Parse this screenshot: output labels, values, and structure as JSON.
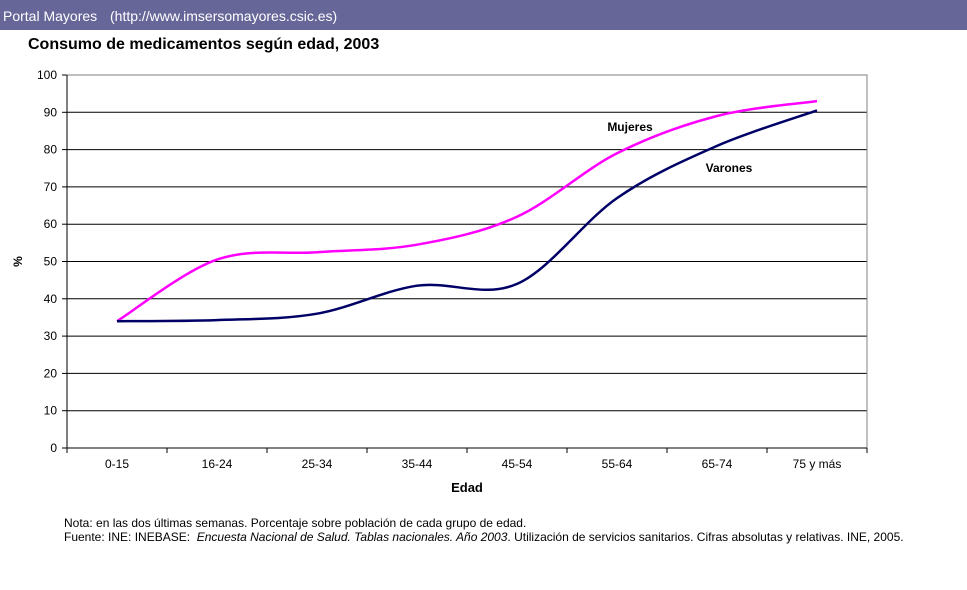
{
  "header": {
    "site_name": "Portal Mayores",
    "site_url": "(http://www.imsersomayores.csic.es)"
  },
  "chart_data": {
    "type": "line",
    "title": "Consumo de medicamentos según edad, 2003",
    "xlabel": "Edad",
    "ylabel": "%",
    "ylim": [
      0,
      100
    ],
    "yticks": [
      0,
      10,
      20,
      30,
      40,
      50,
      60,
      70,
      80,
      90,
      100
    ],
    "grid": true,
    "categories": [
      "0-15",
      "16-24",
      "25-34",
      "35-44",
      "45-54",
      "55-64",
      "65-74",
      "75 y más"
    ],
    "series": [
      {
        "name": "Mujeres",
        "color": "#ff00ff",
        "values": [
          34,
          50.5,
          52.5,
          54.5,
          62,
          79,
          89,
          93
        ]
      },
      {
        "name": "Varones",
        "color": "#000066",
        "values": [
          34,
          34.3,
          36,
          43.5,
          44,
          67,
          81,
          90.5
        ]
      }
    ]
  },
  "notes": {
    "line1": "Nota: en las dos últimas semanas. Porcentaje sobre población de cada grupo de edad.",
    "line2_prefix": "Fuente: INE: INEBASE:  ",
    "line2_italic": "Encuesta Nacional de Salud. Tablas nacionales. Año 2003",
    "line2_suffix": ". Utilización de servicios sanitarios. Cifras absolutas y relativas. INE, 2005."
  }
}
